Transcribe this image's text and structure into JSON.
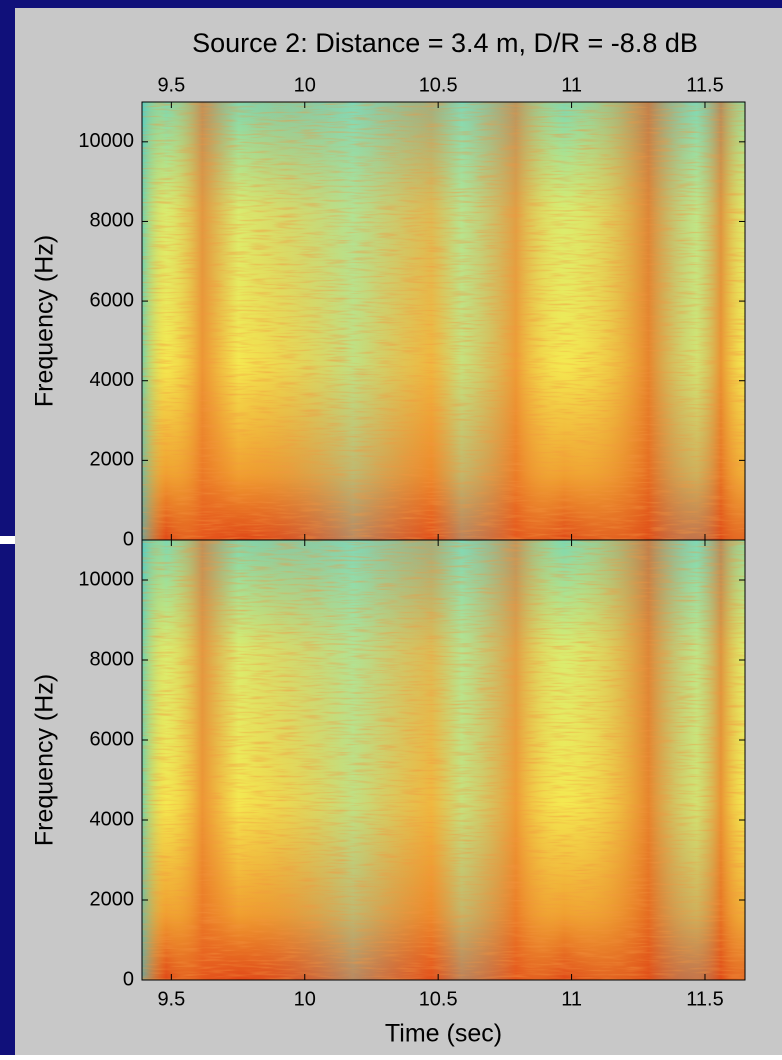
{
  "chart_data": [
    {
      "type": "heatmap",
      "title": "Source 2: Distance = 3.4 m, D/R = -8.8 dB",
      "ylabel": "Frequency (Hz)",
      "xaxis": "top",
      "xlim": [
        9.39,
        11.65
      ],
      "xticks": [
        9.5,
        10,
        10.5,
        11,
        11.5
      ],
      "ylim": [
        0,
        11000
      ],
      "yticks": [
        0,
        2000,
        4000,
        6000,
        8000,
        10000
      ]
    },
    {
      "type": "heatmap",
      "ylabel": "Frequency (Hz)",
      "xlabel": "Time (sec)",
      "xaxis": "bottom",
      "xlim": [
        9.39,
        11.65
      ],
      "xticks": [
        9.5,
        10,
        10.5,
        11,
        11.5
      ],
      "ylim": [
        0,
        11000
      ],
      "yticks": [
        0,
        2000,
        4000,
        6000,
        8000,
        10000
      ]
    }
  ]
}
